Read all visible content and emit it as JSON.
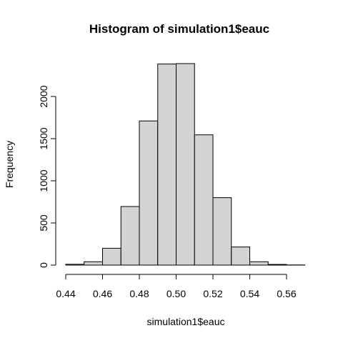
{
  "chart_data": {
    "type": "bar",
    "title": "Histogram of simulation1$eauc",
    "xlabel": "simulation1$eauc",
    "ylabel": "Frequency",
    "bins": [
      {
        "start": 0.44,
        "end": 0.45,
        "count": 10
      },
      {
        "start": 0.45,
        "end": 0.46,
        "count": 40
      },
      {
        "start": 0.46,
        "end": 0.47,
        "count": 200
      },
      {
        "start": 0.47,
        "end": 0.48,
        "count": 695
      },
      {
        "start": 0.48,
        "end": 0.49,
        "count": 1710
      },
      {
        "start": 0.49,
        "end": 0.5,
        "count": 2385
      },
      {
        "start": 0.5,
        "end": 0.51,
        "count": 2390
      },
      {
        "start": 0.51,
        "end": 0.52,
        "count": 1545
      },
      {
        "start": 0.52,
        "end": 0.53,
        "count": 800
      },
      {
        "start": 0.53,
        "end": 0.54,
        "count": 215
      },
      {
        "start": 0.54,
        "end": 0.55,
        "count": 40
      },
      {
        "start": 0.55,
        "end": 0.56,
        "count": 8
      },
      {
        "start": 0.56,
        "end": 0.57,
        "count": 2
      }
    ],
    "xticks": [
      0.44,
      0.46,
      0.48,
      0.5,
      0.52,
      0.54,
      0.56
    ],
    "xtick_labels": [
      "0.44",
      "0.46",
      "0.48",
      "0.50",
      "0.52",
      "0.54",
      "0.56"
    ],
    "yticks": [
      0,
      500,
      1000,
      1500,
      2000
    ],
    "ytick_labels": [
      "0",
      "500",
      "1000",
      "1500",
      "2000"
    ],
    "xlim": [
      0.44,
      0.57
    ],
    "ylim": [
      0,
      2390
    ],
    "bar_color": "#d3d3d3",
    "grid": false
  }
}
